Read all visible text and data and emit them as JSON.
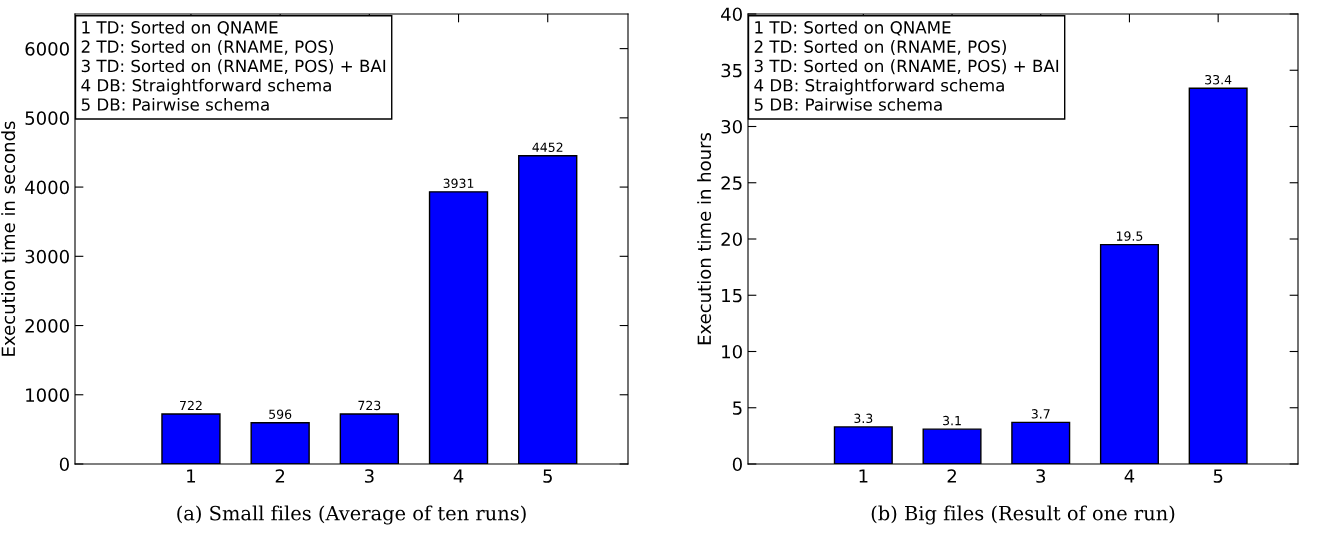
{
  "chart_data": [
    {
      "type": "bar",
      "title": "(a) Small files (Average of ten runs)",
      "ylabel": "Execution time in seconds",
      "categories": [
        "1",
        "2",
        "3",
        "4",
        "5"
      ],
      "values": [
        722,
        596,
        723,
        3931,
        4452
      ],
      "color": "#0000ff",
      "data_labels": true,
      "ylim": [
        0,
        6500
      ],
      "yticks": [
        0,
        1000,
        2000,
        3000,
        4000,
        5000,
        6000
      ],
      "grid": false,
      "annotations": [
        "1 TD: Sorted on QNAME",
        "2 TD: Sorted on (RNAME, POS)",
        "3 TD: Sorted on (RNAME, POS) + BAI",
        "4 DB: Straightforward schema",
        "5 DB: Pairwise schema"
      ]
    },
    {
      "type": "bar",
      "title": "(b) Big files (Result of one run)",
      "ylabel": "Execution time in hours",
      "categories": [
        "1",
        "2",
        "3",
        "4",
        "5"
      ],
      "values": [
        3.3,
        3.1,
        3.7,
        19.5,
        33.4
      ],
      "color": "#0000ff",
      "data_labels": true,
      "ylim": [
        0,
        40
      ],
      "yticks": [
        0,
        5,
        10,
        15,
        20,
        25,
        30,
        35,
        40
      ],
      "grid": false,
      "annotations": [
        "1 TD: Sorted on QNAME",
        "2 TD: Sorted on (RNAME, POS)",
        "3 TD: Sorted on (RNAME, POS) + BAI",
        "4 DB: Straightforward schema",
        "5 DB: Pairwise schema"
      ]
    }
  ]
}
